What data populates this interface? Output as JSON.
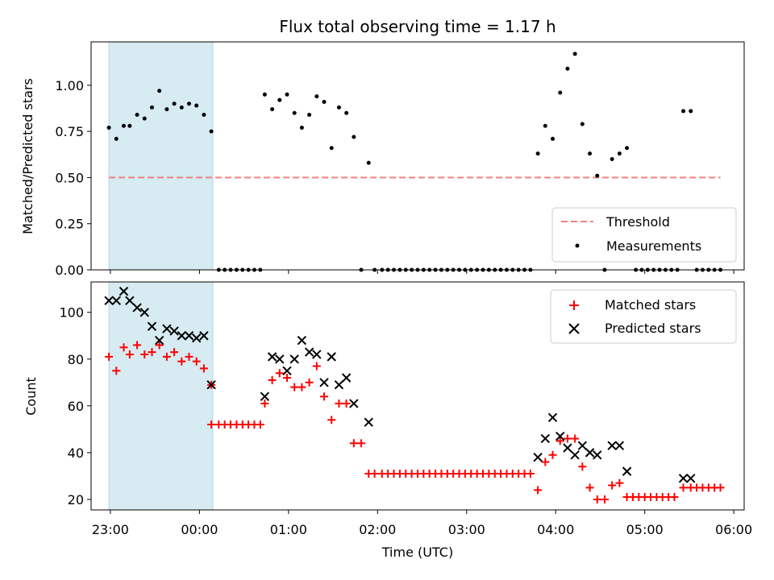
{
  "chart_data": [
    {
      "type": "scatter",
      "title": "Flux total observing time = 1.17 h",
      "xlabel": "",
      "ylabel": "Matched/Predicted stars",
      "ylim": [
        0,
        1.235
      ],
      "yticks": [
        0.0,
        0.25,
        0.5,
        0.75,
        1.0
      ],
      "ytick_labels": [
        "0.00",
        "0.25",
        "0.50",
        "0.75",
        "1.00"
      ],
      "xlim": [
        "22:47",
        "06:07"
      ],
      "xticks": [
        "23:00",
        "00:00",
        "01:00",
        "02:00",
        "03:00",
        "04:00",
        "05:00",
        "06:00"
      ],
      "shaded_region": {
        "x": [
          "22:59",
          "00:09"
        ],
        "color": "#add8e6"
      },
      "threshold": {
        "name": "Threshold",
        "value": 0.5,
        "x": [
          "22:59",
          "05:51"
        ],
        "color": "#f08080"
      },
      "legend": {
        "placement": "lower right",
        "entries": [
          "Threshold",
          "Measurements"
        ]
      },
      "series": [
        {
          "name": "Measurements",
          "color": "#000000",
          "points": [
            [
              "22:59",
              0.77
            ],
            [
              "23:04",
              0.71
            ],
            [
              "23:09",
              0.78
            ],
            [
              "23:13",
              0.78
            ],
            [
              "23:18",
              0.84
            ],
            [
              "23:23",
              0.82
            ],
            [
              "23:28",
              0.88
            ],
            [
              "23:33",
              0.97
            ],
            [
              "23:38",
              0.87
            ],
            [
              "23:43",
              0.9
            ],
            [
              "23:48",
              0.88
            ],
            [
              "23:53",
              0.9
            ],
            [
              "23:58",
              0.89
            ],
            [
              "00:03",
              0.84
            ],
            [
              "00:08",
              0.75
            ],
            [
              "00:13",
              0
            ],
            [
              "00:17",
              0
            ],
            [
              "00:21",
              0
            ],
            [
              "00:25",
              0
            ],
            [
              "00:29",
              0
            ],
            [
              "00:33",
              0
            ],
            [
              "00:37",
              0
            ],
            [
              "00:41",
              0
            ],
            [
              "00:44",
              0.95
            ],
            [
              "00:49",
              0.87
            ],
            [
              "00:54",
              0.92
            ],
            [
              "00:59",
              0.95
            ],
            [
              "01:04",
              0.85
            ],
            [
              "01:09",
              0.77
            ],
            [
              "01:14",
              0.84
            ],
            [
              "01:19",
              0.94
            ],
            [
              "01:24",
              0.91
            ],
            [
              "01:29",
              0.66
            ],
            [
              "01:34",
              0.88
            ],
            [
              "01:39",
              0.85
            ],
            [
              "01:44",
              0.72
            ],
            [
              "01:49",
              0
            ],
            [
              "01:54",
              0.58
            ],
            [
              "01:58",
              0
            ],
            [
              "02:03",
              0
            ],
            [
              "02:07",
              0
            ],
            [
              "02:11",
              0
            ],
            [
              "02:15",
              0
            ],
            [
              "02:19",
              0
            ],
            [
              "02:23",
              0
            ],
            [
              "02:27",
              0
            ],
            [
              "02:31",
              0
            ],
            [
              "02:35",
              0
            ],
            [
              "02:39",
              0
            ],
            [
              "02:43",
              0
            ],
            [
              "02:47",
              0
            ],
            [
              "02:51",
              0
            ],
            [
              "02:55",
              0
            ],
            [
              "02:59",
              0
            ],
            [
              "03:03",
              0
            ],
            [
              "03:07",
              0
            ],
            [
              "03:11",
              0
            ],
            [
              "03:15",
              0
            ],
            [
              "03:19",
              0
            ],
            [
              "03:23",
              0
            ],
            [
              "03:27",
              0
            ],
            [
              "03:31",
              0
            ],
            [
              "03:35",
              0
            ],
            [
              "03:39",
              0
            ],
            [
              "03:43",
              0
            ],
            [
              "03:48",
              0.63
            ],
            [
              "03:53",
              0.78
            ],
            [
              "03:58",
              0.71
            ],
            [
              "04:03",
              0.96
            ],
            [
              "04:08",
              1.09
            ],
            [
              "04:13",
              1.17
            ],
            [
              "04:18",
              0.79
            ],
            [
              "04:23",
              0.63
            ],
            [
              "04:28",
              0.51
            ],
            [
              "04:33",
              0
            ],
            [
              "04:38",
              0.6
            ],
            [
              "04:43",
              0.63
            ],
            [
              "04:48",
              0.66
            ],
            [
              "04:54",
              0
            ],
            [
              "04:58",
              0
            ],
            [
              "05:02",
              0
            ],
            [
              "05:06",
              0
            ],
            [
              "05:10",
              0
            ],
            [
              "05:14",
              0
            ],
            [
              "05:18",
              0
            ],
            [
              "05:22",
              0
            ],
            [
              "05:26",
              0.86
            ],
            [
              "05:31",
              0.86
            ],
            [
              "05:35",
              0
            ],
            [
              "05:39",
              0
            ],
            [
              "05:43",
              0
            ],
            [
              "05:47",
              0
            ],
            [
              "05:51",
              0
            ]
          ]
        }
      ]
    },
    {
      "type": "scatter",
      "title": "",
      "xlabel": "Time (UTC)",
      "ylabel": "Count",
      "ylim": [
        15.5,
        113
      ],
      "yticks": [
        20,
        40,
        60,
        80,
        100
      ],
      "ytick_labels": [
        "20",
        "40",
        "60",
        "80",
        "100"
      ],
      "xlim": [
        "22:47",
        "06:07"
      ],
      "xticks": [
        "23:00",
        "00:00",
        "01:00",
        "02:00",
        "03:00",
        "04:00",
        "05:00",
        "06:00"
      ],
      "xtick_labels": [
        "23:00",
        "00:00",
        "01:00",
        "02:00",
        "03:00",
        "04:00",
        "05:00",
        "06:00"
      ],
      "shaded_region": {
        "x": [
          "22:59",
          "00:09"
        ],
        "color": "#add8e6"
      },
      "legend": {
        "placement": "upper right",
        "entries": [
          "Matched stars",
          "Predicted stars"
        ]
      },
      "series": [
        {
          "name": "Matched stars",
          "color": "#ff0000",
          "points": [
            [
              "22:59",
              81
            ],
            [
              "23:04",
              75
            ],
            [
              "23:09",
              85
            ],
            [
              "23:13",
              82
            ],
            [
              "23:18",
              86
            ],
            [
              "23:23",
              82
            ],
            [
              "23:28",
              83
            ],
            [
              "23:33",
              86
            ],
            [
              "23:38",
              81
            ],
            [
              "23:43",
              83
            ],
            [
              "23:48",
              79
            ],
            [
              "23:53",
              81
            ],
            [
              "23:58",
              79
            ],
            [
              "00:03",
              76
            ],
            [
              "00:08",
              69
            ],
            [
              "00:08",
              52
            ],
            [
              "00:13",
              52
            ],
            [
              "00:17",
              52
            ],
            [
              "00:21",
              52
            ],
            [
              "00:25",
              52
            ],
            [
              "00:29",
              52
            ],
            [
              "00:33",
              52
            ],
            [
              "00:37",
              52
            ],
            [
              "00:41",
              52
            ],
            [
              "00:44",
              61
            ],
            [
              "00:49",
              71
            ],
            [
              "00:54",
              74
            ],
            [
              "00:59",
              72
            ],
            [
              "01:04",
              68
            ],
            [
              "01:09",
              68
            ],
            [
              "01:14",
              70
            ],
            [
              "01:19",
              77
            ],
            [
              "01:24",
              64
            ],
            [
              "01:29",
              54
            ],
            [
              "01:34",
              61
            ],
            [
              "01:39",
              61
            ],
            [
              "01:44",
              44
            ],
            [
              "01:49",
              44
            ],
            [
              "01:54",
              31
            ],
            [
              "01:58",
              31
            ],
            [
              "02:03",
              31
            ],
            [
              "02:07",
              31
            ],
            [
              "02:11",
              31
            ],
            [
              "02:15",
              31
            ],
            [
              "02:19",
              31
            ],
            [
              "02:23",
              31
            ],
            [
              "02:27",
              31
            ],
            [
              "02:31",
              31
            ],
            [
              "02:35",
              31
            ],
            [
              "02:39",
              31
            ],
            [
              "02:43",
              31
            ],
            [
              "02:47",
              31
            ],
            [
              "02:51",
              31
            ],
            [
              "02:55",
              31
            ],
            [
              "02:59",
              31
            ],
            [
              "03:03",
              31
            ],
            [
              "03:07",
              31
            ],
            [
              "03:11",
              31
            ],
            [
              "03:15",
              31
            ],
            [
              "03:19",
              31
            ],
            [
              "03:23",
              31
            ],
            [
              "03:27",
              31
            ],
            [
              "03:31",
              31
            ],
            [
              "03:35",
              31
            ],
            [
              "03:39",
              31
            ],
            [
              "03:43",
              31
            ],
            [
              "03:48",
              24
            ],
            [
              "03:53",
              36
            ],
            [
              "03:58",
              39
            ],
            [
              "04:03",
              45
            ],
            [
              "04:08",
              46
            ],
            [
              "04:13",
              46
            ],
            [
              "04:18",
              34
            ],
            [
              "04:23",
              25
            ],
            [
              "04:28",
              20
            ],
            [
              "04:33",
              20
            ],
            [
              "04:38",
              26
            ],
            [
              "04:43",
              27
            ],
            [
              "04:48",
              21
            ],
            [
              "04:52",
              21
            ],
            [
              "04:56",
              21
            ],
            [
              "05:00",
              21
            ],
            [
              "05:04",
              21
            ],
            [
              "05:08",
              21
            ],
            [
              "05:12",
              21
            ],
            [
              "05:16",
              21
            ],
            [
              "05:20",
              21
            ],
            [
              "05:26",
              25
            ],
            [
              "05:31",
              25
            ],
            [
              "05:35",
              25
            ],
            [
              "05:39",
              25
            ],
            [
              "05:43",
              25
            ],
            [
              "05:47",
              25
            ],
            [
              "05:51",
              25
            ]
          ]
        },
        {
          "name": "Predicted stars",
          "color": "#000000",
          "points": [
            [
              "22:59",
              105
            ],
            [
              "23:04",
              105
            ],
            [
              "23:09",
              109
            ],
            [
              "23:13",
              105
            ],
            [
              "23:18",
              102
            ],
            [
              "23:23",
              100
            ],
            [
              "23:28",
              94
            ],
            [
              "23:33",
              88
            ],
            [
              "23:38",
              93
            ],
            [
              "23:43",
              92
            ],
            [
              "23:48",
              90
            ],
            [
              "23:53",
              90
            ],
            [
              "23:58",
              89
            ],
            [
              "00:03",
              90
            ],
            [
              "00:08",
              69
            ],
            [
              "00:44",
              64
            ],
            [
              "00:49",
              81
            ],
            [
              "00:54",
              80
            ],
            [
              "00:59",
              75
            ],
            [
              "01:04",
              80
            ],
            [
              "01:09",
              88
            ],
            [
              "01:14",
              83
            ],
            [
              "01:19",
              82
            ],
            [
              "01:24",
              70
            ],
            [
              "01:29",
              81
            ],
            [
              "01:34",
              69
            ],
            [
              "01:39",
              72
            ],
            [
              "01:44",
              61
            ],
            [
              "01:54",
              53
            ],
            [
              "03:48",
              38
            ],
            [
              "03:53",
              46
            ],
            [
              "03:58",
              55
            ],
            [
              "04:03",
              47
            ],
            [
              "04:08",
              42
            ],
            [
              "04:13",
              39
            ],
            [
              "04:18",
              43
            ],
            [
              "04:23",
              40
            ],
            [
              "04:28",
              39
            ],
            [
              "04:38",
              43
            ],
            [
              "04:43",
              43
            ],
            [
              "04:48",
              32
            ],
            [
              "05:26",
              29
            ],
            [
              "05:31",
              29
            ]
          ]
        }
      ]
    }
  ]
}
